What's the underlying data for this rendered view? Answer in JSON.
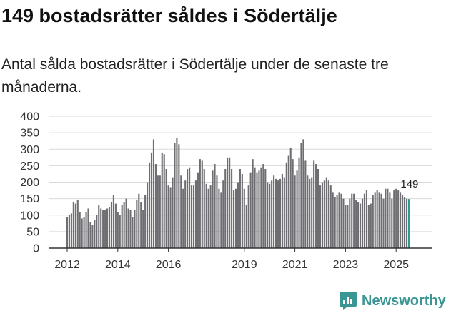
{
  "header": {
    "title": "149 bostadsrätter såldes i Södertälje",
    "subtitle": "Antal sålda bostadsrätter i Södertälje under de senaste tre månaderna."
  },
  "brand": {
    "name": "Newsworthy",
    "icon": "newsworthy-logo-icon",
    "color": "#3a9692"
  },
  "colors": {
    "bar": "#6e6d72",
    "highlight": "#2a9a91",
    "grid": "#d9d9d9",
    "axis": "#333333"
  },
  "chart_data": {
    "type": "bar",
    "title": "149 bostadsrätter såldes i Södertälje",
    "xlabel": "",
    "ylabel": "",
    "ylim": [
      0,
      400
    ],
    "yticks": [
      0,
      50,
      100,
      150,
      200,
      250,
      300,
      350,
      400
    ],
    "xticks": [
      "2012",
      "2014",
      "2016",
      "2019",
      "2021",
      "2023",
      "2025"
    ],
    "grid": true,
    "start": "2012-01",
    "frequency": "monthly",
    "highlight_last": true,
    "annotation": {
      "text": "149",
      "target": "last"
    },
    "values": [
      95,
      100,
      105,
      140,
      135,
      145,
      110,
      90,
      95,
      110,
      120,
      80,
      70,
      85,
      100,
      130,
      120,
      115,
      115,
      120,
      125,
      140,
      160,
      135,
      110,
      100,
      130,
      140,
      150,
      120,
      115,
      95,
      115,
      145,
      165,
      140,
      115,
      160,
      200,
      260,
      290,
      330,
      255,
      220,
      220,
      290,
      285,
      240,
      190,
      185,
      215,
      320,
      335,
      315,
      220,
      180,
      205,
      240,
      245,
      190,
      190,
      205,
      230,
      270,
      265,
      240,
      195,
      180,
      190,
      235,
      255,
      220,
      180,
      170,
      205,
      240,
      275,
      275,
      240,
      175,
      180,
      200,
      240,
      225,
      180,
      130,
      190,
      230,
      270,
      245,
      230,
      235,
      245,
      255,
      240,
      200,
      195,
      205,
      220,
      210,
      205,
      210,
      225,
      215,
      260,
      280,
      305,
      270,
      220,
      235,
      275,
      320,
      330,
      265,
      220,
      210,
      215,
      265,
      255,
      240,
      190,
      200,
      205,
      215,
      205,
      190,
      170,
      155,
      160,
      170,
      165,
      150,
      130,
      130,
      150,
      165,
      165,
      145,
      140,
      135,
      150,
      165,
      175,
      130,
      135,
      160,
      170,
      175,
      170,
      165,
      150,
      180,
      180,
      170,
      150,
      175,
      180,
      175,
      170,
      160,
      155,
      150,
      149
    ]
  }
}
